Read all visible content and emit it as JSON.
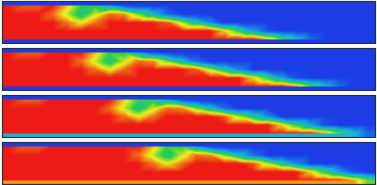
{
  "chart_data": [
    {
      "type": "heatmap",
      "tick_labels": false,
      "zlim": [
        0,
        1
      ],
      "cells": [
        [
          1,
          0.92,
          0.92,
          1,
          0.8,
          0.55,
          0.53,
          0.3,
          0.07,
          0,
          0,
          0,
          0,
          0,
          0,
          0,
          0,
          0,
          0,
          0,
          0,
          0,
          0,
          0,
          0,
          0
        ],
        [
          1,
          1,
          1,
          0.9,
          0.7,
          0.45,
          0.7,
          0.9,
          0.86,
          0.61,
          0.38,
          0.14,
          0,
          0,
          0,
          0,
          0,
          0,
          0,
          0,
          0,
          0,
          0,
          0,
          0,
          0
        ],
        [
          1,
          1,
          1,
          1,
          0.9,
          0.75,
          0.9,
          1,
          1,
          1,
          1,
          0.93,
          0.68,
          0.45,
          0.22,
          0,
          0,
          0,
          0,
          0,
          0,
          0,
          0,
          0,
          0,
          0
        ],
        [
          1,
          1,
          1,
          1,
          1,
          1,
          1,
          1,
          1,
          1,
          1,
          1,
          1,
          1,
          1,
          0.78,
          0.53,
          0.29,
          0.06,
          0,
          0,
          0,
          0,
          0,
          0,
          0
        ],
        [
          1,
          1,
          1,
          1,
          1,
          1,
          1,
          1,
          1,
          1,
          1,
          1,
          1,
          1,
          1,
          1,
          1,
          1,
          0.85,
          0.6,
          0.37,
          0.13,
          0,
          0,
          0,
          0
        ]
      ]
    },
    {
      "type": "heatmap",
      "tick_labels": false,
      "zlim": [
        0,
        1
      ],
      "cells": [
        [
          1,
          0.92,
          0.92,
          1,
          1,
          1,
          0.8,
          0.55,
          0.53,
          0.3,
          0.07,
          0,
          0,
          0,
          0,
          0,
          0,
          0,
          0,
          0,
          0,
          0,
          0,
          0,
          0,
          0
        ],
        [
          1,
          1,
          1,
          1,
          1,
          0.9,
          0.7,
          0.45,
          0.7,
          0.9,
          0.86,
          0.61,
          0.38,
          0.14,
          0,
          0,
          0,
          0,
          0,
          0,
          0,
          0,
          0,
          0,
          0,
          0
        ],
        [
          1,
          1,
          1,
          1,
          1,
          1,
          0.9,
          0.75,
          0.9,
          1,
          1,
          1,
          1,
          0.93,
          0.68,
          0.45,
          0.22,
          0,
          0,
          0,
          0,
          0,
          0,
          0,
          0,
          0
        ],
        [
          1,
          1,
          1,
          1,
          1,
          1,
          1,
          1,
          1,
          1,
          1,
          1,
          1,
          1,
          1,
          1,
          1,
          0.78,
          0.53,
          0.29,
          0.06,
          0,
          0,
          0,
          0,
          0
        ],
        [
          1,
          1,
          1,
          1,
          1,
          1,
          1,
          1,
          1,
          1,
          1,
          1,
          1,
          1,
          1,
          1,
          1,
          1,
          1,
          1,
          0.85,
          0.6,
          0.37,
          0.13,
          0,
          0
        ]
      ]
    },
    {
      "type": "heatmap",
      "tick_labels": false,
      "zlim": [
        0,
        1
      ],
      "cells": [
        [
          1,
          0.92,
          0.92,
          1,
          1,
          1,
          1,
          1,
          0.8,
          0.55,
          0.53,
          0.3,
          0.07,
          0,
          0,
          0,
          0,
          0,
          0,
          0,
          0,
          0,
          0,
          0,
          0,
          0
        ],
        [
          1,
          1,
          1,
          1,
          1,
          1,
          1,
          0.9,
          0.7,
          0.45,
          0.7,
          0.9,
          0.86,
          0.61,
          0.38,
          0.14,
          0,
          0,
          0,
          0,
          0,
          0,
          0,
          0,
          0,
          0
        ],
        [
          1,
          1,
          1,
          1,
          1,
          1,
          1,
          1,
          0.9,
          0.75,
          0.9,
          1,
          1,
          1,
          1,
          0.93,
          0.68,
          0.45,
          0.22,
          0,
          0,
          0,
          0,
          0,
          0,
          0
        ],
        [
          1,
          1,
          1,
          1,
          1,
          1,
          1,
          1,
          1,
          1,
          1,
          1,
          1,
          1,
          1,
          1,
          1,
          1,
          1,
          0.78,
          0.53,
          0.29,
          0.06,
          0,
          0,
          0
        ],
        [
          1,
          1,
          1,
          1,
          1,
          1,
          1,
          1,
          1,
          1,
          1,
          1,
          1,
          1,
          1,
          1,
          1,
          1,
          1,
          1,
          1,
          1,
          0.85,
          0.6,
          0.37,
          0.13
        ]
      ]
    },
    {
      "type": "heatmap",
      "tick_labels": false,
      "zlim": [
        0,
        1
      ],
      "cells": [
        [
          1,
          0.92,
          0.92,
          1,
          1,
          1,
          1,
          1,
          1,
          1,
          0.8,
          0.55,
          0.53,
          0.3,
          0.07,
          0,
          0,
          0,
          0,
          0,
          0,
          0,
          0,
          0,
          0,
          0
        ],
        [
          1,
          1,
          1,
          1,
          1,
          1,
          1,
          1,
          1,
          0.9,
          0.7,
          0.45,
          0.7,
          0.9,
          0.86,
          0.61,
          0.38,
          0.14,
          0,
          0,
          0,
          0,
          0,
          0,
          0,
          0
        ],
        [
          1,
          1,
          1,
          1,
          1,
          1,
          1,
          1,
          1,
          1,
          0.9,
          0.75,
          0.9,
          1,
          1,
          1,
          1,
          0.93,
          0.68,
          0.45,
          0.22,
          0,
          0,
          0,
          0,
          0
        ],
        [
          1,
          1,
          1,
          1,
          1,
          1,
          1,
          1,
          1,
          1,
          1,
          1,
          1,
          1,
          1,
          1,
          1,
          1,
          1,
          1,
          1,
          0.78,
          0.53,
          0.29,
          0.06,
          0
        ],
        [
          1,
          1,
          1,
          1,
          1,
          1,
          1,
          1,
          1,
          1,
          1,
          1,
          1,
          1,
          1,
          1,
          1,
          1,
          1,
          1,
          1,
          1,
          1,
          1,
          0.85,
          0.6
        ]
      ]
    }
  ]
}
